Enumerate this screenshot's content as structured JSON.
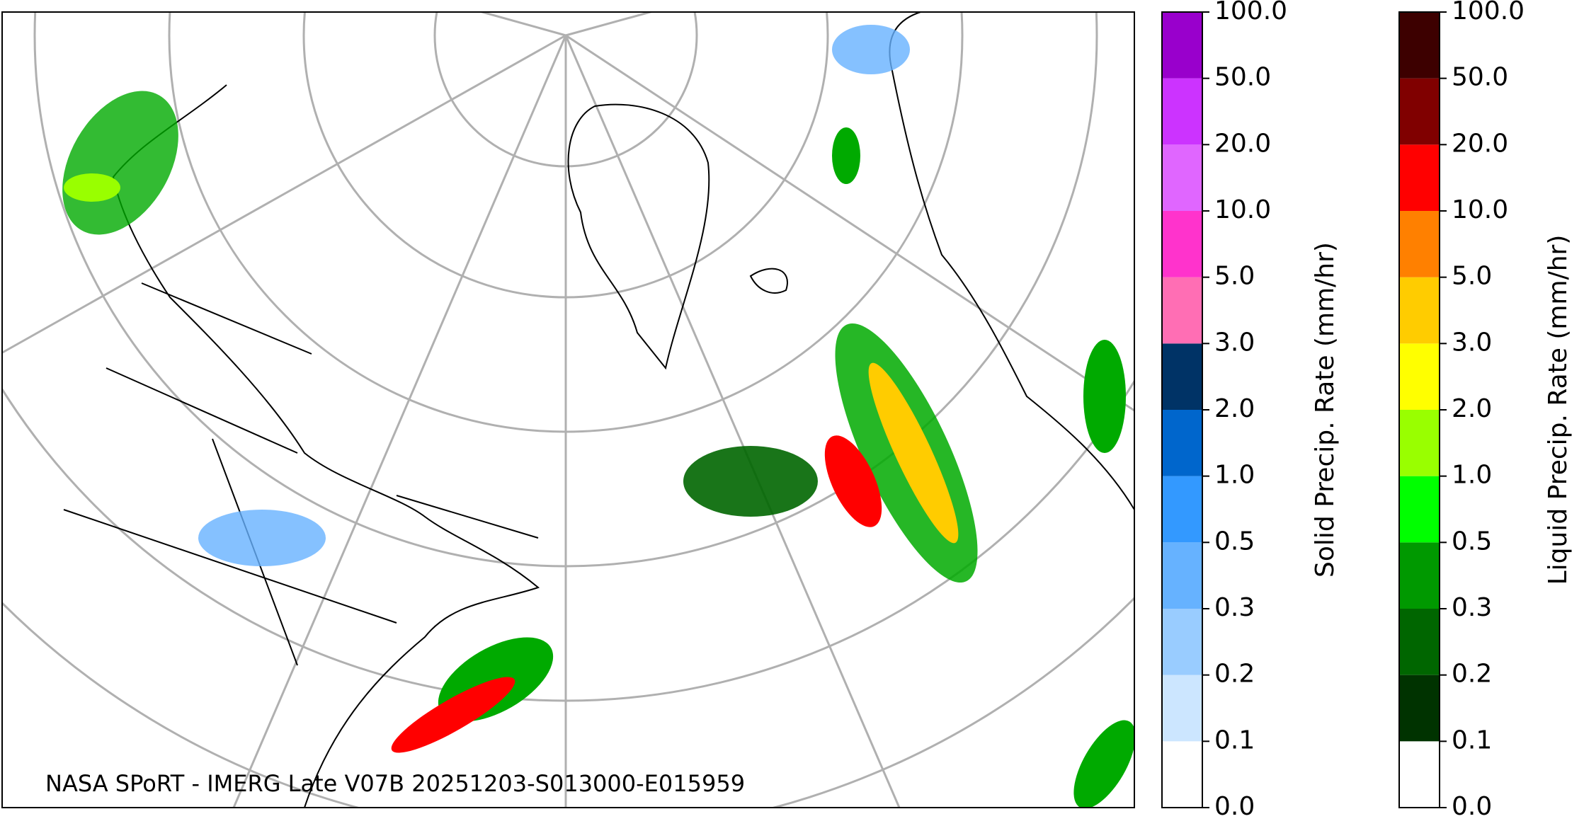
{
  "caption": "NASA SPoRT - IMERG Late V07B 20251203-S013000-E015959",
  "colorbars": [
    {
      "label": "Solid Precip. Rate (mm/hr)",
      "ticks": [
        {
          "value": 0,
          "label": "0.0"
        },
        {
          "value": 0.1,
          "label": "0.1"
        },
        {
          "value": 0.2,
          "label": "0.2"
        },
        {
          "value": 0.3,
          "label": "0.3"
        },
        {
          "value": 0.5,
          "label": "0.5"
        },
        {
          "value": 1,
          "label": "1.0"
        },
        {
          "value": 2,
          "label": "2.0"
        },
        {
          "value": 3,
          "label": "3.0"
        },
        {
          "value": 5,
          "label": "5.0"
        },
        {
          "value": 10,
          "label": "10.0"
        },
        {
          "value": 20,
          "label": "20.0"
        },
        {
          "value": 50,
          "label": "50.0"
        },
        {
          "value": 100,
          "label": "100.0"
        }
      ],
      "colors": [
        "#ffffff",
        "#cce6ff",
        "#99ccff",
        "#66b2ff",
        "#3399ff",
        "#0066cc",
        "#003366",
        "#ff6eb4",
        "#ff33cc",
        "#e066ff",
        "#cc33ff",
        "#9900cc"
      ]
    },
    {
      "label": "Liquid Precip. Rate (mm/hr)",
      "ticks": [
        {
          "value": 0,
          "label": "0.0"
        },
        {
          "value": 0.1,
          "label": "0.1"
        },
        {
          "value": 0.2,
          "label": "0.2"
        },
        {
          "value": 0.3,
          "label": "0.3"
        },
        {
          "value": 0.5,
          "label": "0.5"
        },
        {
          "value": 1,
          "label": "1.0"
        },
        {
          "value": 2,
          "label": "2.0"
        },
        {
          "value": 3,
          "label": "3.0"
        },
        {
          "value": 5,
          "label": "5.0"
        },
        {
          "value": 10,
          "label": "10.0"
        },
        {
          "value": 20,
          "label": "20.0"
        },
        {
          "value": 50,
          "label": "50.0"
        },
        {
          "value": 100,
          "label": "100.0"
        }
      ],
      "colors": [
        "#ffffff",
        "#003300",
        "#006600",
        "#009900",
        "#00ff00",
        "#99ff00",
        "#ffff00",
        "#ffcc00",
        "#ff8000",
        "#ff0000",
        "#800000",
        "#3d0000"
      ]
    }
  ]
}
